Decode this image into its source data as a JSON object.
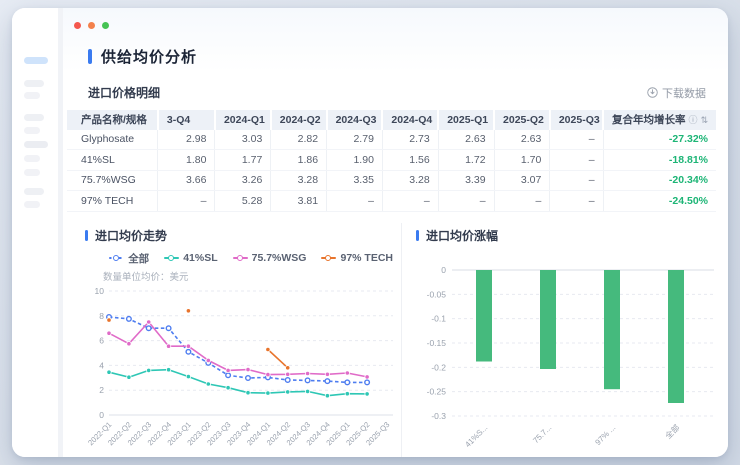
{
  "window": {
    "dot_colors": [
      "#f4574e",
      "#f3814c",
      "#45c354"
    ]
  },
  "header": {
    "title": "供给均价分析",
    "accent_color": "#3a7bf0"
  },
  "icons": {
    "info": "ⓘ",
    "sort": "⇅"
  },
  "table_section": {
    "title": "进口价格明细",
    "download_label": "下载数据",
    "columns": [
      "产品名称/规格",
      "3-Q4",
      "2024-Q1",
      "2024-Q2",
      "2024-Q3",
      "2024-Q4",
      "2025-Q1",
      "2025-Q2",
      "2025-Q3",
      "复合年均增长率"
    ],
    "rows": [
      {
        "name": "Glyphosate",
        "values": [
          "2.98",
          "3.03",
          "2.82",
          "2.79",
          "2.73",
          "2.63",
          "2.63",
          "–"
        ],
        "cagr": "-27.32%"
      },
      {
        "name": "41%SL",
        "values": [
          "1.80",
          "1.77",
          "1.86",
          "1.90",
          "1.56",
          "1.72",
          "1.70",
          "–"
        ],
        "cagr": "-18.81%"
      },
      {
        "name": "75.7%WSG",
        "values": [
          "3.66",
          "3.26",
          "3.28",
          "3.35",
          "3.28",
          "3.39",
          "3.07",
          "–"
        ],
        "cagr": "-20.34%"
      },
      {
        "name": "97% TECH",
        "values": [
          "–",
          "5.28",
          "3.81",
          "–",
          "–",
          "–",
          "–",
          "–"
        ],
        "cagr": "-24.50%"
      }
    ],
    "cagr_color": "#1db576"
  },
  "chart_data": [
    {
      "type": "line",
      "title": "进口均价走势",
      "unit_note": "数量单位均价：美元",
      "x": [
        "2022-Q1",
        "2022-Q2",
        "2022-Q3",
        "2022-Q4",
        "2023-Q1",
        "2023-Q2",
        "2023-Q3",
        "2023-Q4",
        "2024-Q1",
        "2024-Q2",
        "2024-Q3",
        "2024-Q4",
        "2025-Q1",
        "2025-Q2",
        "2025-Q3"
      ],
      "ylim": [
        0,
        10
      ],
      "yticks": [
        0,
        2,
        4,
        6,
        8,
        10
      ],
      "grid": "dashed",
      "legend_position": "top",
      "series": [
        {
          "name": "全部",
          "color": "#4e7df0",
          "dashed": true,
          "values": [
            7.9,
            7.75,
            7.0,
            7.0,
            5.1,
            4.2,
            3.2,
            2.98,
            3.03,
            2.82,
            2.79,
            2.73,
            2.63,
            2.63,
            null
          ]
        },
        {
          "name": "41%SL",
          "color": "#2ec7b5",
          "dashed": false,
          "values": [
            3.45,
            3.05,
            3.6,
            3.65,
            3.1,
            2.5,
            2.2,
            1.8,
            1.77,
            1.86,
            1.9,
            1.56,
            1.72,
            1.7,
            null
          ]
        },
        {
          "name": "75.7%WSG",
          "color": "#e06bc8",
          "dashed": false,
          "values": [
            6.6,
            5.75,
            7.5,
            5.55,
            5.55,
            4.4,
            3.6,
            3.66,
            3.26,
            3.28,
            3.35,
            3.28,
            3.39,
            3.07,
            null
          ]
        },
        {
          "name": "97% TECH",
          "color": "#e8742c",
          "dashed": false,
          "values": [
            7.65,
            null,
            null,
            null,
            8.4,
            null,
            null,
            null,
            5.28,
            3.81,
            null,
            null,
            null,
            null,
            null
          ]
        }
      ]
    },
    {
      "type": "bar",
      "title": "进口均价涨幅",
      "categories": [
        "41%S...",
        "75.7...",
        "97% ...",
        "全部"
      ],
      "values": [
        -0.1881,
        -0.2034,
        -0.245,
        -0.2732
      ],
      "bar_color": "#45ba7d",
      "ylim": [
        -0.3,
        0
      ],
      "yticks": [
        0,
        -0.05,
        -0.1,
        -0.15,
        -0.2,
        -0.25,
        -0.3
      ],
      "grid": "dashed"
    }
  ]
}
